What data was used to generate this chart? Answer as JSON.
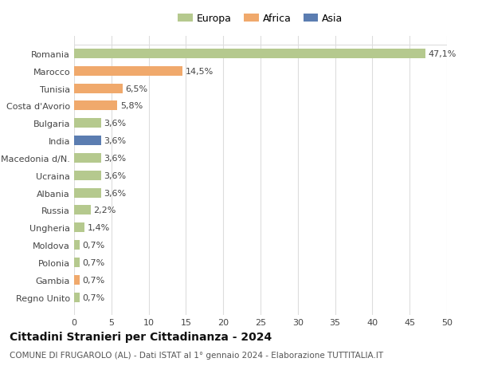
{
  "countries": [
    "Romania",
    "Marocco",
    "Tunisia",
    "Costa d'Avorio",
    "Bulgaria",
    "India",
    "Macedonia d/N.",
    "Ucraina",
    "Albania",
    "Russia",
    "Ungheria",
    "Moldova",
    "Polonia",
    "Gambia",
    "Regno Unito"
  ],
  "values": [
    47.1,
    14.5,
    6.5,
    5.8,
    3.6,
    3.6,
    3.6,
    3.6,
    3.6,
    2.2,
    1.4,
    0.7,
    0.7,
    0.7,
    0.7
  ],
  "labels": [
    "47,1%",
    "14,5%",
    "6,5%",
    "5,8%",
    "3,6%",
    "3,6%",
    "3,6%",
    "3,6%",
    "3,6%",
    "2,2%",
    "1,4%",
    "0,7%",
    "0,7%",
    "0,7%",
    "0,7%"
  ],
  "continents": [
    "Europa",
    "Africa",
    "Africa",
    "Africa",
    "Europa",
    "Asia",
    "Europa",
    "Europa",
    "Europa",
    "Europa",
    "Europa",
    "Europa",
    "Europa",
    "Africa",
    "Europa"
  ],
  "colors": {
    "Europa": "#b5c98e",
    "Africa": "#f0a96c",
    "Asia": "#5b7db1"
  },
  "legend_items": [
    "Europa",
    "Africa",
    "Asia"
  ],
  "title": "Cittadini Stranieri per Cittadinanza - 2024",
  "subtitle": "COMUNE DI FRUGAROLO (AL) - Dati ISTAT al 1° gennaio 2024 - Elaborazione TUTTITALIA.IT",
  "xlim": [
    0,
    50
  ],
  "xticks": [
    0,
    5,
    10,
    15,
    20,
    25,
    30,
    35,
    40,
    45,
    50
  ],
  "background_color": "#ffffff",
  "grid_color": "#dddddd",
  "bar_height": 0.55,
  "title_fontsize": 10,
  "subtitle_fontsize": 7.5,
  "tick_fontsize": 8,
  "label_fontsize": 8,
  "legend_fontsize": 9
}
